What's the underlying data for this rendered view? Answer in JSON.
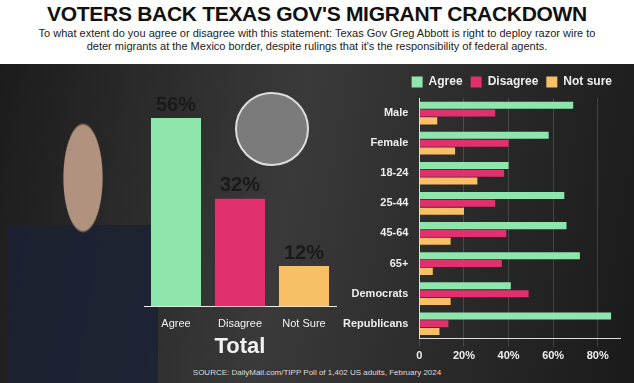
{
  "header": {
    "title": "VOTERS BACK TEXAS GOV'S MIGRANT CRACKDOWN",
    "subtitle": "To what extent do you agree or disagree with this statement: Texas Gov Greg Abbott is right to deploy razor wire to deter migrants at the Mexico border, despite rulings that it's the responsibility of federal agents.",
    "source": "SOURCE: DailyMail.com/TIPP Poll of 1,402 US adults, February 2024"
  },
  "chart_data": [
    {
      "type": "bar",
      "xlabel": "Total",
      "categories": [
        "Agree",
        "Disagree",
        "Not Sure"
      ],
      "values": [
        56,
        32,
        12
      ],
      "value_labels": [
        "56%",
        "32%",
        "12%"
      ],
      "colors": [
        "#8ee6ac",
        "#e0306e",
        "#f8c066"
      ],
      "ylim": [
        0,
        56
      ],
      "grid": false,
      "data_labels": true,
      "tick_labels": "x"
    },
    {
      "type": "bar",
      "orientation": "horizontal",
      "categories": [
        "Male",
        "Female",
        "18-24",
        "25-44",
        "45-64",
        "65+",
        "Democrats",
        "Republicans"
      ],
      "series": [
        {
          "name": "Agree",
          "color": "#8ee6ac",
          "values": [
            69,
            58,
            40,
            65,
            66,
            72,
            41,
            86
          ]
        },
        {
          "name": "Disagree",
          "color": "#e0306e",
          "values": [
            34,
            40,
            38,
            34,
            39,
            37,
            49,
            13
          ]
        },
        {
          "name": "Not sure",
          "color": "#f8c066",
          "values": [
            8,
            16,
            26,
            20,
            14,
            6,
            14,
            9
          ]
        }
      ],
      "xlim": [
        0,
        90
      ],
      "xticks": [
        0,
        {
          "value": 20,
          "label": "20%"
        },
        {
          "value": 40,
          "label": "40%"
        },
        {
          "value": 60,
          "label": "60%"
        },
        {
          "value": 80,
          "label": "80%"
        }
      ],
      "grid": true,
      "legend": "top"
    }
  ]
}
